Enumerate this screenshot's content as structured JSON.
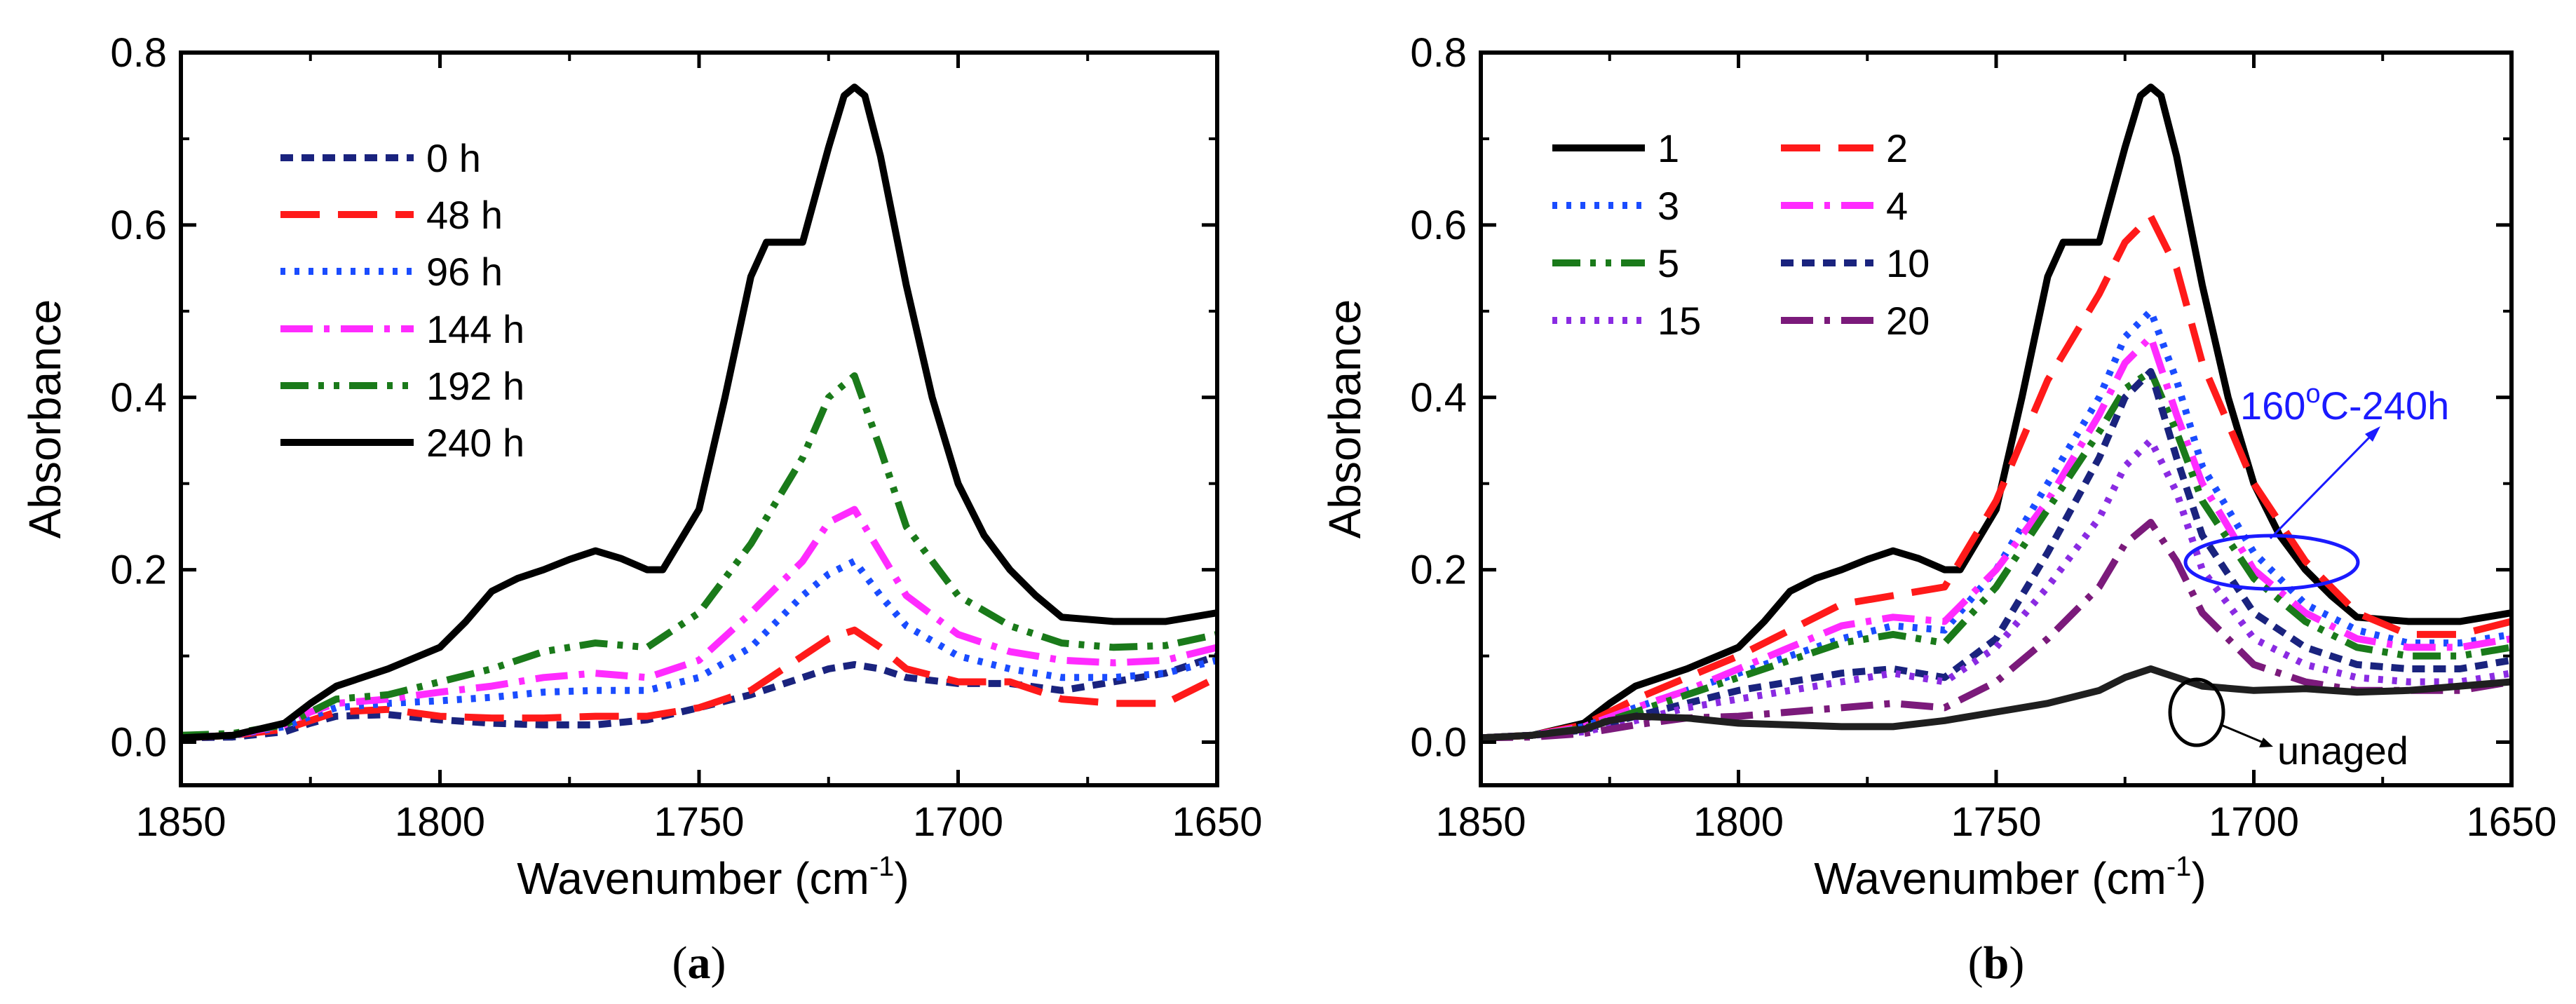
{
  "chart_data": [
    {
      "type": "line",
      "panel_label": "a",
      "xlabel": "Wavenumber (cm",
      "xlabel_sup": "-1",
      "xlabel_end": ")",
      "ylabel": "Absorbance",
      "xlim": [
        1850,
        1650
      ],
      "ylim": [
        -0.05,
        0.8
      ],
      "x_reversed": true,
      "xticks": [
        1850,
        1800,
        1750,
        1700,
        1650
      ],
      "yticks": [
        0.0,
        0.2,
        0.4,
        0.6,
        0.8
      ],
      "ytick_labels": [
        "0.0",
        "0.2",
        "0.4",
        "0.6",
        "0.8"
      ],
      "legend_position": "top-left",
      "series": [
        {
          "name": "0 h",
          "color": "#1a237e",
          "dash": "short-dash",
          "x": [
            1850,
            1840,
            1830,
            1825,
            1820,
            1810,
            1800,
            1790,
            1780,
            1770,
            1760,
            1750,
            1740,
            1730,
            1725,
            1720,
            1715,
            1710,
            1700,
            1690,
            1680,
            1670,
            1660,
            1650
          ],
          "y": [
            0.005,
            0.006,
            0.012,
            0.022,
            0.03,
            0.032,
            0.026,
            0.022,
            0.02,
            0.02,
            0.026,
            0.04,
            0.055,
            0.075,
            0.085,
            0.09,
            0.085,
            0.075,
            0.068,
            0.068,
            0.06,
            0.07,
            0.08,
            0.1
          ]
        },
        {
          "name": "48 h",
          "color": "#ff1a1a",
          "dash": "long-dash",
          "x": [
            1850,
            1840,
            1830,
            1825,
            1820,
            1810,
            1800,
            1790,
            1780,
            1770,
            1760,
            1750,
            1740,
            1730,
            1725,
            1720,
            1715,
            1710,
            1700,
            1690,
            1680,
            1670,
            1660,
            1650
          ],
          "y": [
            0.005,
            0.008,
            0.015,
            0.025,
            0.035,
            0.038,
            0.03,
            0.028,
            0.028,
            0.03,
            0.03,
            0.04,
            0.06,
            0.1,
            0.12,
            0.13,
            0.11,
            0.085,
            0.07,
            0.07,
            0.05,
            0.045,
            0.045,
            0.075
          ]
        },
        {
          "name": "96 h",
          "color": "#1a4cff",
          "dash": "dot",
          "x": [
            1850,
            1840,
            1830,
            1825,
            1820,
            1810,
            1800,
            1790,
            1780,
            1770,
            1760,
            1750,
            1740,
            1730,
            1725,
            1720,
            1715,
            1710,
            1700,
            1690,
            1680,
            1670,
            1660,
            1650
          ],
          "y": [
            0.005,
            0.008,
            0.018,
            0.03,
            0.04,
            0.045,
            0.048,
            0.052,
            0.058,
            0.06,
            0.06,
            0.075,
            0.11,
            0.17,
            0.195,
            0.21,
            0.17,
            0.135,
            0.1,
            0.085,
            0.075,
            0.075,
            0.08,
            0.095
          ]
        },
        {
          "name": "144 h",
          "color": "#ff2bff",
          "dash": "dash-dot",
          "x": [
            1850,
            1840,
            1830,
            1825,
            1820,
            1810,
            1800,
            1790,
            1780,
            1770,
            1760,
            1750,
            1740,
            1730,
            1725,
            1720,
            1715,
            1710,
            1700,
            1690,
            1680,
            1670,
            1660,
            1650
          ],
          "y": [
            0.005,
            0.008,
            0.02,
            0.035,
            0.045,
            0.05,
            0.058,
            0.065,
            0.075,
            0.08,
            0.075,
            0.095,
            0.15,
            0.21,
            0.255,
            0.27,
            0.22,
            0.17,
            0.125,
            0.105,
            0.095,
            0.092,
            0.095,
            0.11
          ]
        },
        {
          "name": "192 h",
          "color": "#1a7a1a",
          "dash": "dash-dot-dot",
          "x": [
            1850,
            1840,
            1830,
            1825,
            1820,
            1810,
            1800,
            1790,
            1780,
            1770,
            1760,
            1750,
            1740,
            1730,
            1725,
            1720,
            1715,
            1710,
            1700,
            1690,
            1680,
            1670,
            1660,
            1650
          ],
          "y": [
            0.008,
            0.01,
            0.02,
            0.035,
            0.05,
            0.055,
            0.07,
            0.085,
            0.105,
            0.115,
            0.11,
            0.15,
            0.23,
            0.33,
            0.4,
            0.425,
            0.34,
            0.25,
            0.17,
            0.135,
            0.115,
            0.11,
            0.112,
            0.125
          ]
        },
        {
          "name": "240 h",
          "color": "#000000",
          "dash": "solid",
          "x": [
            1850,
            1840,
            1830,
            1825,
            1820,
            1815,
            1810,
            1800,
            1795,
            1790,
            1785,
            1780,
            1775,
            1770,
            1765,
            1760,
            1757,
            1750,
            1745,
            1740,
            1737,
            1730,
            1725,
            1722,
            1720,
            1718,
            1715,
            1710,
            1705,
            1700,
            1695,
            1690,
            1685,
            1680,
            1670,
            1660,
            1655,
            1650
          ],
          "y": [
            0.005,
            0.008,
            0.022,
            0.045,
            0.065,
            0.075,
            0.085,
            0.11,
            0.14,
            0.175,
            0.19,
            0.2,
            0.212,
            0.222,
            0.213,
            0.2,
            0.2,
            0.27,
            0.4,
            0.54,
            0.58,
            0.58,
            0.69,
            0.75,
            0.76,
            0.75,
            0.68,
            0.53,
            0.4,
            0.3,
            0.24,
            0.2,
            0.17,
            0.145,
            0.14,
            0.14,
            0.145,
            0.15
          ]
        }
      ]
    },
    {
      "type": "line",
      "panel_label": "b",
      "xlabel": "Wavenumber (cm",
      "xlabel_sup": "-1",
      "xlabel_end": ")",
      "ylabel": "Absorbance",
      "xlim": [
        1850,
        1650
      ],
      "ylim": [
        -0.05,
        0.8
      ],
      "x_reversed": true,
      "xticks": [
        1850,
        1800,
        1750,
        1700,
        1650
      ],
      "yticks": [
        0.0,
        0.2,
        0.4,
        0.6,
        0.8
      ],
      "ytick_labels": [
        "0.0",
        "0.2",
        "0.4",
        "0.6",
        "0.8"
      ],
      "legend_position": "top-left",
      "annotations": {
        "aged_label": "160",
        "aged_label_sup": "o",
        "aged_label_end": "C-240h",
        "aged_color": "#1a1aff",
        "unaged_label": "unaged"
      },
      "series": [
        {
          "name": "1",
          "color": "#000000",
          "dash": "solid",
          "x": [
            1850,
            1840,
            1830,
            1825,
            1820,
            1815,
            1810,
            1800,
            1795,
            1790,
            1785,
            1780,
            1775,
            1770,
            1765,
            1760,
            1757,
            1750,
            1745,
            1740,
            1737,
            1730,
            1725,
            1722,
            1720,
            1718,
            1715,
            1710,
            1705,
            1700,
            1695,
            1690,
            1685,
            1680,
            1670,
            1660,
            1655,
            1650
          ],
          "y": [
            0.005,
            0.008,
            0.022,
            0.045,
            0.065,
            0.075,
            0.085,
            0.11,
            0.14,
            0.175,
            0.19,
            0.2,
            0.212,
            0.222,
            0.213,
            0.2,
            0.2,
            0.27,
            0.4,
            0.54,
            0.58,
            0.58,
            0.69,
            0.75,
            0.76,
            0.75,
            0.68,
            0.53,
            0.4,
            0.3,
            0.24,
            0.2,
            0.17,
            0.145,
            0.14,
            0.14,
            0.145,
            0.15
          ]
        },
        {
          "name": "2",
          "color": "#ff1a1a",
          "dash": "long-dash",
          "x": [
            1850,
            1840,
            1830,
            1820,
            1810,
            1800,
            1790,
            1780,
            1770,
            1760,
            1750,
            1740,
            1730,
            1725,
            1720,
            1715,
            1710,
            1700,
            1690,
            1680,
            1670,
            1660,
            1650
          ],
          "y": [
            0.005,
            0.008,
            0.02,
            0.05,
            0.075,
            0.1,
            0.13,
            0.16,
            0.17,
            0.18,
            0.28,
            0.42,
            0.52,
            0.58,
            0.61,
            0.55,
            0.44,
            0.3,
            0.21,
            0.15,
            0.125,
            0.125,
            0.14
          ]
        },
        {
          "name": "3",
          "color": "#1a4cff",
          "dash": "dot",
          "x": [
            1850,
            1840,
            1830,
            1820,
            1810,
            1800,
            1790,
            1780,
            1770,
            1760,
            1750,
            1740,
            1730,
            1725,
            1720,
            1715,
            1710,
            1700,
            1690,
            1680,
            1670,
            1660,
            1650
          ],
          "y": [
            0.005,
            0.008,
            0.018,
            0.04,
            0.06,
            0.08,
            0.1,
            0.12,
            0.135,
            0.13,
            0.2,
            0.3,
            0.4,
            0.47,
            0.5,
            0.42,
            0.32,
            0.22,
            0.16,
            0.13,
            0.115,
            0.115,
            0.125
          ]
        },
        {
          "name": "4",
          "color": "#ff2bff",
          "dash": "dash-dot",
          "x": [
            1850,
            1840,
            1830,
            1820,
            1810,
            1800,
            1790,
            1780,
            1770,
            1760,
            1750,
            1740,
            1730,
            1725,
            1720,
            1715,
            1710,
            1700,
            1690,
            1680,
            1670,
            1660,
            1650
          ],
          "y": [
            0.005,
            0.008,
            0.018,
            0.04,
            0.06,
            0.085,
            0.11,
            0.135,
            0.145,
            0.14,
            0.2,
            0.28,
            0.38,
            0.44,
            0.47,
            0.38,
            0.3,
            0.2,
            0.15,
            0.12,
            0.11,
            0.11,
            0.12
          ]
        },
        {
          "name": "5",
          "color": "#1a7a1a",
          "dash": "dash-dot-dot",
          "x": [
            1850,
            1840,
            1830,
            1820,
            1810,
            1800,
            1790,
            1780,
            1770,
            1760,
            1750,
            1740,
            1730,
            1725,
            1720,
            1715,
            1710,
            1700,
            1690,
            1680,
            1670,
            1660,
            1650
          ],
          "y": [
            0.005,
            0.008,
            0.016,
            0.035,
            0.055,
            0.075,
            0.095,
            0.115,
            0.125,
            0.115,
            0.18,
            0.27,
            0.36,
            0.41,
            0.43,
            0.36,
            0.28,
            0.19,
            0.14,
            0.11,
            0.1,
            0.1,
            0.11
          ]
        },
        {
          "name": "10",
          "color": "#1a237e",
          "dash": "short-dash",
          "x": [
            1850,
            1840,
            1830,
            1820,
            1810,
            1800,
            1790,
            1780,
            1770,
            1760,
            1750,
            1740,
            1730,
            1725,
            1720,
            1715,
            1710,
            1700,
            1690,
            1680,
            1670,
            1660,
            1650
          ],
          "y": [
            0.005,
            0.008,
            0.014,
            0.03,
            0.045,
            0.06,
            0.07,
            0.08,
            0.085,
            0.075,
            0.12,
            0.22,
            0.33,
            0.4,
            0.43,
            0.33,
            0.24,
            0.15,
            0.11,
            0.09,
            0.085,
            0.085,
            0.095
          ]
        },
        {
          "name": "15",
          "color": "#8a2be2",
          "dash": "dot",
          "x": [
            1850,
            1840,
            1830,
            1820,
            1810,
            1800,
            1790,
            1780,
            1770,
            1760,
            1750,
            1740,
            1730,
            1725,
            1720,
            1715,
            1710,
            1700,
            1690,
            1680,
            1670,
            1660,
            1650
          ],
          "y": [
            0.005,
            0.008,
            0.012,
            0.025,
            0.04,
            0.05,
            0.06,
            0.07,
            0.08,
            0.07,
            0.11,
            0.18,
            0.26,
            0.32,
            0.35,
            0.29,
            0.2,
            0.12,
            0.09,
            0.075,
            0.07,
            0.07,
            0.08
          ]
        },
        {
          "name": "20",
          "color": "#7b1a7b",
          "dash": "dash-dot",
          "x": [
            1850,
            1840,
            1830,
            1820,
            1810,
            1800,
            1790,
            1780,
            1770,
            1760,
            1750,
            1740,
            1730,
            1725,
            1720,
            1715,
            1710,
            1700,
            1690,
            1680,
            1670,
            1660,
            1650
          ],
          "y": [
            0.005,
            0.006,
            0.01,
            0.02,
            0.028,
            0.03,
            0.035,
            0.04,
            0.045,
            0.04,
            0.07,
            0.12,
            0.18,
            0.23,
            0.255,
            0.21,
            0.15,
            0.09,
            0.07,
            0.06,
            0.06,
            0.06,
            0.07
          ]
        },
        {
          "name": "unaged",
          "show_in_legend": false,
          "color": "#1f1f1f",
          "dash": "solid",
          "x": [
            1850,
            1840,
            1830,
            1825,
            1820,
            1810,
            1800,
            1790,
            1780,
            1770,
            1760,
            1750,
            1740,
            1730,
            1725,
            1720,
            1715,
            1710,
            1700,
            1690,
            1680,
            1670,
            1660,
            1650
          ],
          "y": [
            0.005,
            0.008,
            0.015,
            0.025,
            0.03,
            0.028,
            0.022,
            0.02,
            0.018,
            0.018,
            0.025,
            0.035,
            0.045,
            0.06,
            0.075,
            0.085,
            0.075,
            0.065,
            0.06,
            0.062,
            0.058,
            0.06,
            0.065,
            0.07
          ]
        }
      ]
    }
  ]
}
